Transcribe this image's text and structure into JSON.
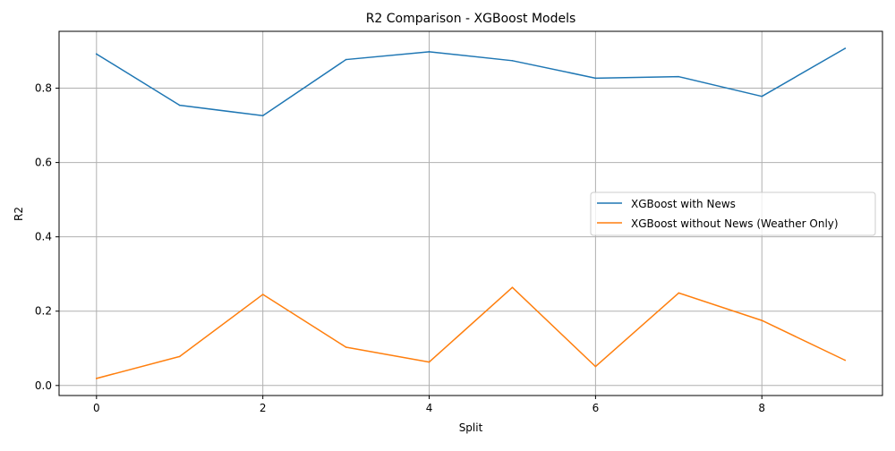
{
  "chart_data": {
    "type": "line",
    "title": "R2 Comparison - XGBoost Models",
    "xlabel": "Split",
    "ylabel": "R2",
    "x": [
      0,
      1,
      2,
      3,
      4,
      5,
      6,
      7,
      8,
      9
    ],
    "xlim": [
      -0.45,
      9.45
    ],
    "ylim": [
      -0.027,
      0.953
    ],
    "x_ticks": [
      0,
      2,
      4,
      6,
      8
    ],
    "y_ticks": [
      0.0,
      0.2,
      0.4,
      0.6,
      0.8
    ],
    "x_tick_labels": [
      "0",
      "2",
      "4",
      "6",
      "8"
    ],
    "y_tick_labels": [
      "0.0",
      "0.2",
      "0.4",
      "0.6",
      "0.8"
    ],
    "grid": true,
    "legend_position": "center-right",
    "series": [
      {
        "name": "XGBoost with News",
        "color": "#1f77b4",
        "values": [
          0.892,
          0.754,
          0.726,
          0.877,
          0.898,
          0.874,
          0.827,
          0.831,
          0.778,
          0.907
        ]
      },
      {
        "name": "XGBoost without News (Weather Only)",
        "color": "#ff7f0e",
        "values": [
          0.019,
          0.078,
          0.245,
          0.103,
          0.063,
          0.264,
          0.051,
          0.249,
          0.175,
          0.068
        ]
      }
    ]
  }
}
